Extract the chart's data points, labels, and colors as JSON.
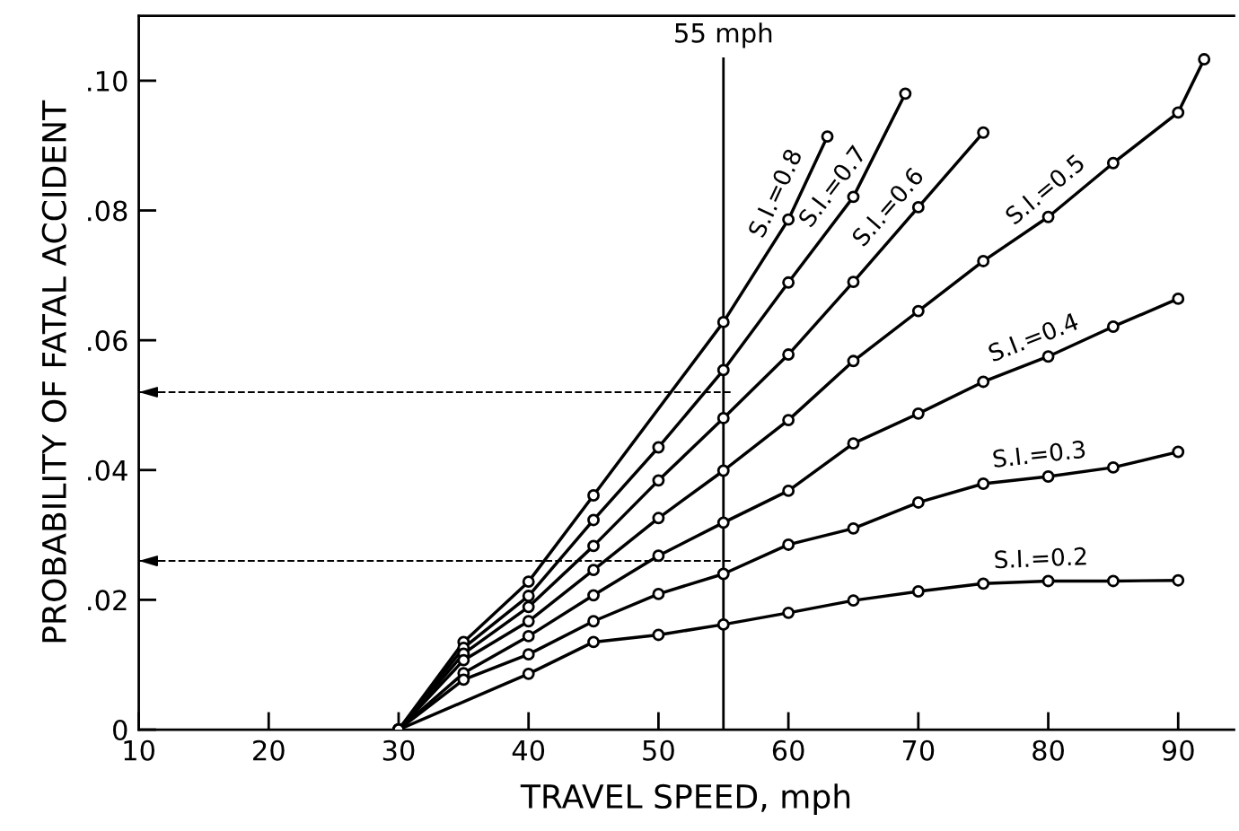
{
  "chart_data": {
    "type": "line",
    "xlabel": "TRAVEL SPEED, mph",
    "ylabel": "PROBABILITY OF FATAL ACCIDENT",
    "xlim": [
      10,
      94.3
    ],
    "xticks": [
      10,
      20,
      30,
      40,
      50,
      60,
      70,
      80,
      90
    ],
    "ylim": [
      0,
      0.11
    ],
    "yticks": [
      {
        "value": 0,
        "label": "0"
      },
      {
        "value": 0.02,
        "label": ".02"
      },
      {
        "value": 0.04,
        "label": ".04"
      },
      {
        "value": 0.06,
        "label": ".06"
      },
      {
        "value": 0.08,
        "label": ".08"
      },
      {
        "value": 0.1,
        "label": ".10"
      }
    ],
    "marker": "circle",
    "line_style": "solid",
    "grid": false,
    "legend": false,
    "series": [
      {
        "name": "S.I.=0.8",
        "color": "#000000",
        "x": [
          30,
          35,
          40,
          45,
          55,
          60,
          63
        ],
        "values": [
          0,
          0.0135,
          0.0228,
          0.0361,
          0.0628,
          0.0786,
          0.0914
        ]
      },
      {
        "name": "S.I.=0.7",
        "color": "#000000",
        "x": [
          30,
          35,
          40,
          45,
          50,
          55,
          60,
          65,
          69
        ],
        "values": [
          0,
          0.0126,
          0.0206,
          0.0323,
          0.0435,
          0.0554,
          0.0689,
          0.0821,
          0.098
        ]
      },
      {
        "name": "S.I.=0.6",
        "color": "#000000",
        "x": [
          30,
          35,
          40,
          45,
          50,
          55,
          60,
          65,
          70,
          75
        ],
        "values": [
          0,
          0.0117,
          0.0189,
          0.0283,
          0.0384,
          0.048,
          0.0578,
          0.069,
          0.0805,
          0.092
        ]
      },
      {
        "name": "S.I.=0.5",
        "color": "#000000",
        "x": [
          30,
          35,
          40,
          45,
          50,
          55,
          60,
          65,
          70,
          75,
          80,
          85,
          90,
          92
        ],
        "values": [
          0,
          0.0107,
          0.0167,
          0.0246,
          0.0326,
          0.0399,
          0.0477,
          0.0568,
          0.0645,
          0.0722,
          0.079,
          0.0873,
          0.0951,
          0.1033
        ]
      },
      {
        "name": "S.I.=0.4",
        "color": "#000000",
        "x": [
          30,
          35,
          40,
          45,
          50,
          55,
          60,
          65,
          70,
          75,
          80,
          85,
          90
        ],
        "values": [
          0,
          0.0087,
          0.0144,
          0.0207,
          0.0268,
          0.0319,
          0.0368,
          0.0441,
          0.0487,
          0.0536,
          0.0575,
          0.0621,
          0.0664
        ]
      },
      {
        "name": "S.I.=0.3",
        "color": "#000000",
        "x": [
          30,
          35,
          40,
          45,
          50,
          55,
          60,
          65,
          70,
          75,
          80,
          85,
          90
        ],
        "values": [
          0,
          0.0077,
          0.0116,
          0.0167,
          0.0209,
          0.024,
          0.0285,
          0.031,
          0.035,
          0.0379,
          0.039,
          0.0404,
          0.0428
        ]
      },
      {
        "name": "S.I.=0.2",
        "color": "#000000",
        "x": [
          30,
          40,
          45,
          50,
          55,
          60,
          65,
          70,
          75,
          80,
          85,
          90
        ],
        "values": [
          0,
          0.0086,
          0.0135,
          0.0146,
          0.0162,
          0.018,
          0.0199,
          0.0213,
          0.0225,
          0.0229,
          0.0229,
          0.023
        ]
      }
    ],
    "ref_lines": [
      {
        "axis": "x",
        "value": 55,
        "label": "55 mph",
        "color": "#000000",
        "line_style": "solid"
      },
      {
        "axis": "y",
        "value": 0.052,
        "color": "#000000",
        "line_style": "dashed"
      },
      {
        "axis": "y",
        "value": 0.026,
        "color": "#000000",
        "line_style": "dashed"
      }
    ]
  }
}
